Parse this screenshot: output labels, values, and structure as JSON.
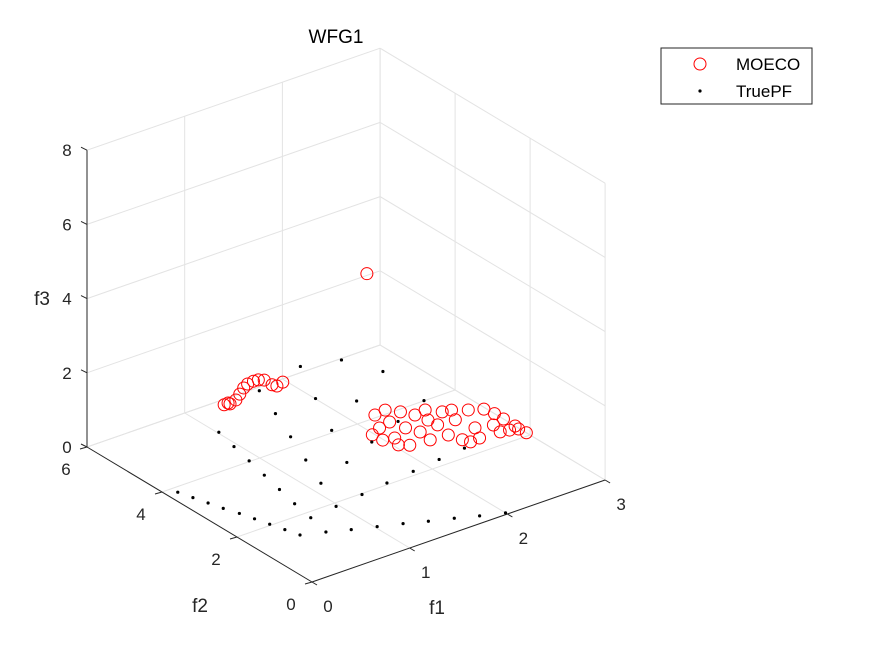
{
  "chart_data": {
    "type": "scatter3d",
    "title": "WFG1",
    "xlabel": "f1",
    "ylabel": "f2",
    "zlabel": "f3",
    "xlim": [
      0,
      3
    ],
    "ylim": [
      0,
      6
    ],
    "zlim": [
      0,
      8
    ],
    "xticks": [
      "0",
      "1",
      "2",
      "3"
    ],
    "yticks": [
      "0",
      "2",
      "4",
      "6"
    ],
    "zticks": [
      "0",
      "2",
      "4",
      "6",
      "8"
    ],
    "grid": true,
    "legend_position": "top-right",
    "colors": {
      "MOECO": "#ff0000",
      "TruePF": "#000000",
      "grid": "#e3e3e3",
      "axis": "#262626"
    },
    "series": [
      {
        "name": "MOECO",
        "marker": "circle-open",
        "points": [
          [
            1.02,
            5.0,
            0.81
          ],
          [
            1.06,
            5.0,
            0.82
          ],
          [
            1.08,
            5.0,
            0.78
          ],
          [
            1.14,
            5.0,
            0.83
          ],
          [
            1.18,
            5.0,
            0.95
          ],
          [
            1.22,
            5.0,
            1.08
          ],
          [
            1.26,
            5.0,
            1.15
          ],
          [
            1.32,
            5.0,
            1.17
          ],
          [
            1.37,
            5.0,
            1.16
          ],
          [
            1.43,
            5.0,
            1.1
          ],
          [
            1.51,
            5.0,
            0.9
          ],
          [
            1.56,
            5.0,
            0.82
          ],
          [
            1.62,
            5.0,
            0.87
          ],
          [
            2.21,
            4.08,
            0
          ],
          [
            2.1,
            3.67,
            0
          ],
          [
            1.98,
            3.55,
            0
          ],
          [
            2.33,
            4.12,
            0
          ],
          [
            2.23,
            3.74,
            0
          ],
          [
            2.09,
            3.24,
            0
          ],
          [
            2.41,
            3.92,
            0
          ],
          [
            2.27,
            3.42,
            0
          ],
          [
            2.11,
            2.89,
            0
          ],
          [
            2.47,
            3.69,
            0
          ],
          [
            2.32,
            3.16,
            0
          ],
          [
            2.59,
            3.73,
            0
          ],
          [
            2.3,
            2.84,
            0
          ],
          [
            2.51,
            3.19,
            0
          ],
          [
            2.68,
            3.51,
            0
          ],
          [
            2.47,
            2.8,
            0
          ],
          [
            2.68,
            3.16,
            0
          ],
          [
            2.51,
            2.53,
            0
          ],
          [
            2.87,
            3.31,
            0
          ],
          [
            2.72,
            2.74,
            0
          ],
          [
            2.64,
            2.41,
            0
          ],
          [
            2.98,
            3.18,
            0
          ],
          [
            2.87,
            2.64,
            0
          ],
          [
            2.84,
            2.38,
            0
          ],
          [
            3.0,
            2.95,
            0
          ],
          [
            2.92,
            2.34,
            0
          ],
          [
            3.0,
            2.71,
            0
          ],
          [
            2.99,
            2.28,
            0
          ],
          [
            3.0,
            2.4,
            0
          ],
          [
            3.0,
            2.1,
            0
          ],
          [
            1.99,
            3.3,
            0
          ],
          [
            2.04,
            3.01,
            0
          ],
          [
            2.5,
            3.42,
            0
          ],
          [
            2.76,
            3.47,
            0
          ],
          [
            2.54,
            2.39,
            0
          ],
          [
            0.6,
            0.1,
            7.7
          ]
        ]
      },
      {
        "name": "TruePF",
        "marker": "point",
        "points": [
          [
            0.43,
            1.44,
            0
          ],
          [
            0.63,
            1.27,
            0
          ],
          [
            0.82,
            1.09,
            0
          ],
          [
            1.02,
            0.92,
            0
          ],
          [
            1.22,
            0.75,
            0
          ],
          [
            1.41,
            0.57,
            0
          ],
          [
            1.61,
            0.4,
            0
          ],
          [
            1.8,
            0.22,
            0
          ],
          [
            2.0,
            0.05,
            0
          ],
          [
            0.39,
            1.74,
            0
          ],
          [
            0.59,
            1.57,
            0.24
          ],
          [
            0.78,
            1.39,
            0.48
          ],
          [
            0.98,
            1.22,
            0.72
          ],
          [
            1.17,
            1.05,
            0.96
          ],
          [
            1.37,
            0.87,
            1.2
          ],
          [
            1.57,
            0.7,
            1.44
          ],
          [
            1.76,
            0.52,
            1.68
          ],
          [
            0.35,
            2.04,
            0
          ],
          [
            0.54,
            1.87,
            0.48
          ],
          [
            0.74,
            1.69,
            0.96
          ],
          [
            0.94,
            1.52,
            1.44
          ],
          [
            1.13,
            1.35,
            1.92
          ],
          [
            1.33,
            1.17,
            2.4
          ],
          [
            1.53,
            1.0,
            2.88
          ],
          [
            0.31,
            2.34,
            0
          ],
          [
            0.5,
            2.17,
            0.72
          ],
          [
            0.7,
            1.99,
            1.44
          ],
          [
            0.9,
            1.82,
            2.16
          ],
          [
            1.09,
            1.65,
            2.88
          ],
          [
            1.29,
            1.47,
            3.6
          ],
          [
            0.27,
            2.64,
            0
          ],
          [
            0.46,
            2.47,
            0.96
          ],
          [
            0.66,
            2.29,
            1.92
          ],
          [
            0.85,
            2.12,
            2.88
          ],
          [
            1.05,
            1.95,
            3.84
          ],
          [
            0.22,
            2.94,
            0
          ],
          [
            0.42,
            2.77,
            1.2
          ],
          [
            0.62,
            2.59,
            2.4
          ],
          [
            0.81,
            2.42,
            3.6
          ],
          [
            0.18,
            3.24,
            0
          ],
          [
            0.38,
            3.07,
            1.44
          ],
          [
            0.57,
            2.89,
            2.88
          ],
          [
            0.14,
            3.54,
            0
          ],
          [
            0.34,
            3.37,
            1.68
          ],
          [
            0.1,
            3.84,
            0
          ]
        ]
      }
    ]
  }
}
